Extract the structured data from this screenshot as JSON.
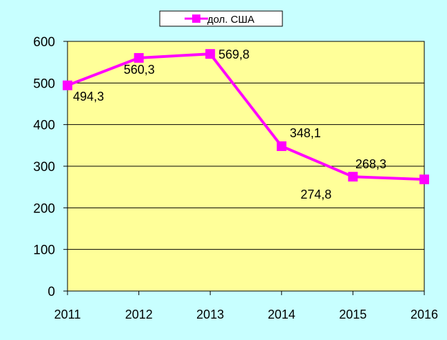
{
  "chart_data": {
    "type": "line",
    "x": [
      "2011",
      "2012",
      "2013",
      "2014",
      "2015",
      "2016"
    ],
    "series": [
      {
        "name": "дол. США",
        "values": [
          494.3,
          560.3,
          569.8,
          348.1,
          274.8,
          268.3
        ],
        "color": "#ff00ff"
      }
    ],
    "data_labels": [
      "494,3",
      "560,3",
      "569,8",
      "348,1",
      "274,8",
      "268,3"
    ],
    "yticks": [
      "0",
      "100",
      "200",
      "300",
      "400",
      "500",
      "600"
    ],
    "ylim": [
      0,
      600
    ],
    "grid": true,
    "legend_position": "top-center",
    "plot_background": "#ffff99",
    "background": "#c8ffff",
    "title": "",
    "xlabel": "",
    "ylabel": ""
  }
}
